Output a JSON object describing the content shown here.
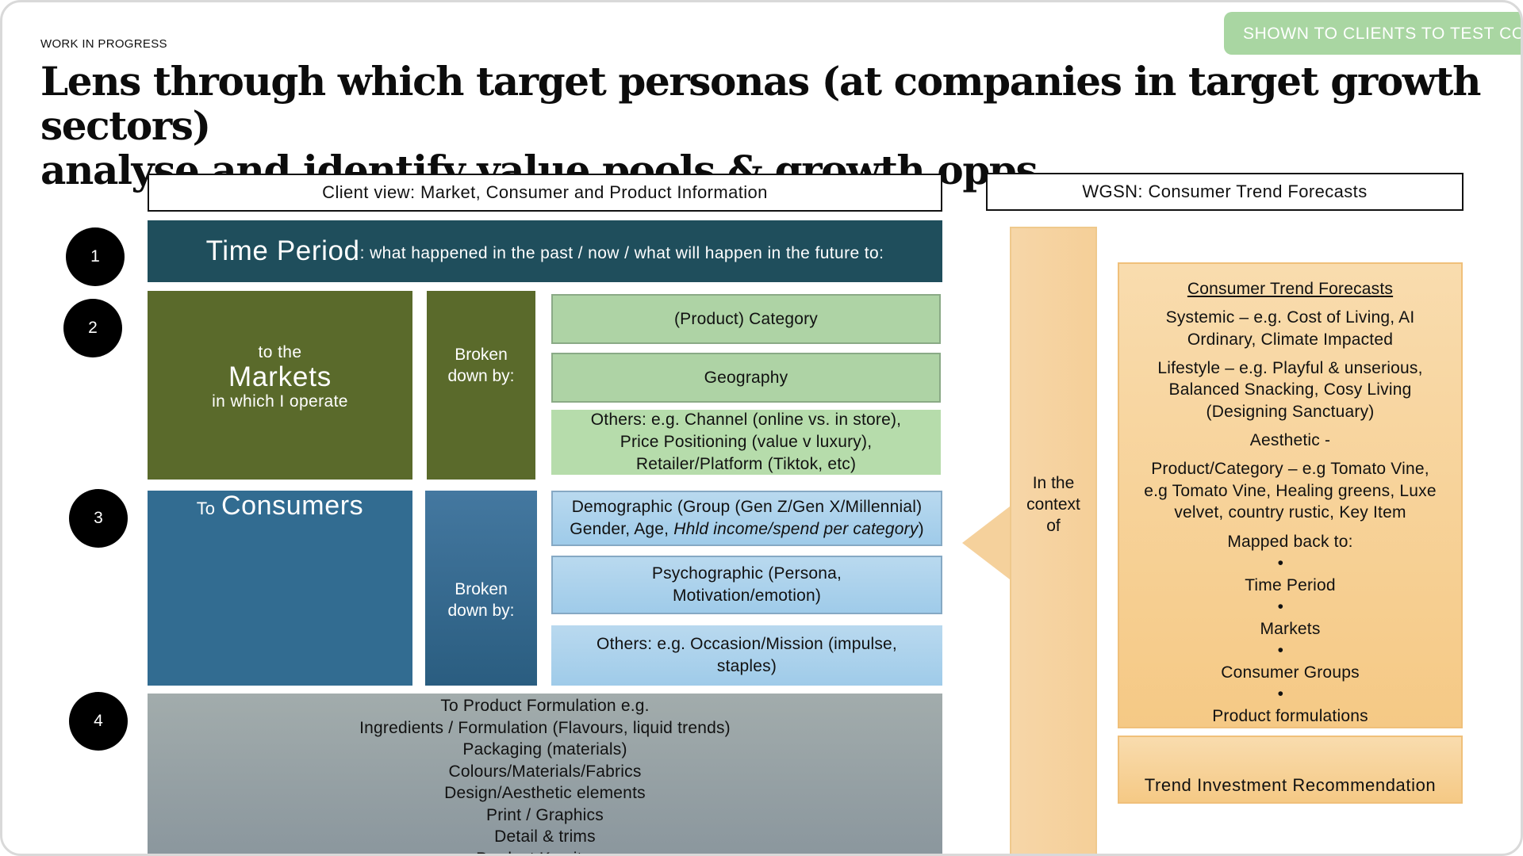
{
  "header": {
    "status": "WORK IN PROGRESS",
    "badge": "SHOWN TO CLIENTS TO TEST CONCEPT",
    "title_line1": "Lens through which target personas (at companies in target growth sectors)",
    "title_line2": "analyse and identify value pools & growth opps"
  },
  "columns": {
    "client_view": "Client view: Market, Consumer and Product Information",
    "wgsn": "WGSN: Consumer Trend Forecasts"
  },
  "steps": [
    "1",
    "2",
    "3",
    "4"
  ],
  "time_period": {
    "heading": "Time Period",
    "text": ": what happened in the past / now / what will happen in the future to:"
  },
  "markets": {
    "pre": "to the",
    "main": "Markets",
    "post": "in which I operate",
    "broken_line1": "Broken",
    "broken_line2": "down by:",
    "items": [
      "(Product) Category",
      "Geography"
    ],
    "others_lines": [
      "Others: e.g. Channel (online vs. in store),",
      "Price Positioning (value v luxury),",
      "Retailer/Platform (Tiktok, etc)"
    ]
  },
  "consumers": {
    "pre": "To",
    "main": "Consumers",
    "broken_line1": "Broken",
    "broken_line2": "down by:",
    "demographic_line1": "Demographic (Group (Gen Z/Gen X/Millennial)",
    "demographic_line2a": "Gender, Age, ",
    "demographic_line2b": "Hhld income/spend per category",
    "demographic_line2c": ")",
    "psychographic_line1": "Psychographic (Persona,",
    "psychographic_line2": "Motivation/emotion)",
    "others_line1": "Others: e.g. Occasion/Mission (impulse,",
    "others_line2": "staples)"
  },
  "product": {
    "lines": [
      "To Product Formulation e.g.",
      "Ingredients / Formulation (Flavours, liquid trends)",
      "Packaging (materials)",
      "Colours/Materials/Fabrics",
      "Design/Aesthetic elements",
      "Print / Graphics",
      "Detail & trims",
      "Product Key items"
    ]
  },
  "context": {
    "line1": "In the",
    "line2": "context",
    "line3": "of"
  },
  "trends": {
    "heading": "Consumer Trend Forecasts",
    "systemic": [
      "Systemic – e.g. Cost of Living, AI",
      "Ordinary, Climate Impacted"
    ],
    "lifestyle": [
      "Lifestyle – e.g. Playful & unserious,",
      "Balanced Snacking, Cosy Living",
      "(Designing Sanctuary)"
    ],
    "aesthetic": "Aesthetic -",
    "product_category": [
      "Product/Category – e.g Tomato Vine,",
      "e.g Tomato Vine, Healing greens, Luxe",
      "velvet, country rustic, Key Item"
    ],
    "mapped_heading": "Mapped back to:",
    "mapped_items": [
      "Time Period",
      "Markets",
      "Consumer Groups",
      "Product formulations"
    ]
  },
  "recommendation": "Trend Investment Recommendation",
  "colors": {
    "time_period": "#1f4e5c",
    "markets": "#5a6a2b",
    "consumers": "#326c91",
    "green_box": "#aed3a5",
    "blue_box": "#a9d1ec",
    "grey_box": "#96a1a5",
    "orange": "#f5cf98",
    "badge": "#a9d6a2"
  }
}
